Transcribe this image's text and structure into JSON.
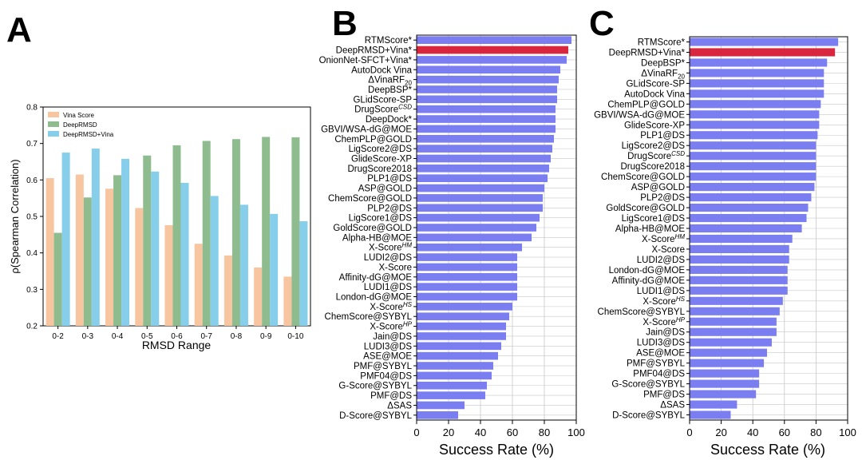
{
  "panels": [
    {
      "letter": "A",
      "chart_data": {
        "type": "bar",
        "xlabel": "RMSD Range",
        "ylabel": "ρ(Spearman Correlation)",
        "ylim": [
          0.2,
          0.8
        ],
        "yticks": [
          "0.2",
          "0.3",
          "0.4",
          "0.5",
          "0.6",
          "0.7",
          "0.8"
        ],
        "categories": [
          "0-2",
          "0-3",
          "0-4",
          "0-5",
          "0-6",
          "0-7",
          "0-8",
          "0-9",
          "0-10"
        ],
        "legend_position": "top-left",
        "grid": false,
        "series": [
          {
            "name": "Vina Score",
            "color": "#f7c59f",
            "values": [
              0.605,
              0.615,
              0.576,
              0.523,
              0.476,
              0.425,
              0.393,
              0.36,
              0.335
            ]
          },
          {
            "name": "DeepRMSD",
            "color": "#8fbc8f",
            "values": [
              0.455,
              0.552,
              0.613,
              0.667,
              0.695,
              0.707,
              0.712,
              0.718,
              0.717
            ]
          },
          {
            "name": "DeepRMSD+Vina",
            "color": "#87ceeb",
            "values": [
              0.675,
              0.686,
              0.658,
              0.623,
              0.592,
              0.556,
              0.532,
              0.507,
              0.487
            ]
          }
        ]
      }
    },
    {
      "letter": "B",
      "chart_data": {
        "type": "bar",
        "orientation": "horizontal",
        "xlabel": "Success Rate (%)",
        "xlim": [
          0,
          100
        ],
        "xticks": [
          "0",
          "20",
          "40",
          "60",
          "80",
          "100"
        ],
        "grid": true,
        "bar_color": "#7b7ef0",
        "highlight_color": "#d7263d",
        "highlight": [
          "DeepRMSD+Vina*"
        ],
        "categories": [
          "RTMScore*",
          "DeepRMSD+Vina*",
          "OnionNet-SFCT+Vina*",
          "AutoDock Vina",
          "ΔVinaRF20",
          "DeepBSP*",
          "GLidScore-SP",
          "DrugScoreCSD",
          "DeepDock*",
          "GBVI/WSA-dG@MOE",
          "ChemPLP@GOLD",
          "LigScore2@DS",
          "GlideScore-XP",
          "DrugScore2018",
          "PLP1@DS",
          "ASP@GOLD",
          "ChemScore@GOLD",
          "PLP2@DS",
          "LigScore1@DS",
          "GoldScore@GOLD",
          "Alpha-HB@MOE",
          "X-ScoreHM",
          "LUDI2@DS",
          "X-Score",
          "Affinity-dG@MOE",
          "LUDI1@DS",
          "London-dG@MOE",
          "X-ScoreHS",
          "ChemScore@SYBYL",
          "X-ScoreHP",
          "Jain@DS",
          "LUDI3@DS",
          "ASE@MOE",
          "PMF@SYBYL",
          "PMF04@DS",
          "G-Score@SYBYL",
          "PMF@DS",
          "ΔSAS",
          "D-Score@SYBYL"
        ],
        "values": [
          97,
          95,
          94,
          90,
          89,
          88,
          88,
          87,
          87,
          87,
          86,
          85,
          84,
          83,
          82,
          80,
          79,
          79,
          77,
          75,
          72,
          66,
          63,
          63,
          63,
          63,
          63,
          60,
          58,
          56,
          56,
          53,
          51,
          48,
          47,
          44,
          43,
          30,
          26
        ]
      }
    },
    {
      "letter": "C",
      "chart_data": {
        "type": "bar",
        "orientation": "horizontal",
        "xlabel": "Success Rate (%)",
        "xlim": [
          0,
          100
        ],
        "xticks": [
          "0",
          "20",
          "40",
          "60",
          "80",
          "100"
        ],
        "grid": true,
        "bar_color": "#7b7ef0",
        "highlight_color": "#d7263d",
        "highlight": [
          "DeepRMSD+Vina*"
        ],
        "categories": [
          "RTMScore*",
          "DeepRMSD+Vina*",
          "DeepBSP*",
          "ΔVinaRF20",
          "GLidScore-SP",
          "AutoDock Vina",
          "ChemPLP@GOLD",
          "GBVI/WSA-dG@MOE",
          "GlideScore-XP",
          "PLP1@DS",
          "LigScore2@DS",
          "DrugScoreCSD",
          "DrugScore2018",
          "ChemScore@GOLD",
          "ASP@GOLD",
          "PLP2@DS",
          "GoldScore@GOLD",
          "LigScore1@DS",
          "Alpha-HB@MOE",
          "X-ScoreHM",
          "X-Score",
          "LUDI2@DS",
          "London-dG@MOE",
          "Affinity-dG@MOE",
          "LUDI1@DS",
          "X-ScoreHS",
          "ChemScore@SYBYL",
          "X-ScoreHP",
          "Jain@DS",
          "LUDI3@DS",
          "ASE@MOE",
          "PMF@SYBYL",
          "PMF04@DS",
          "G-Score@SYBYL",
          "PMF@DS",
          "ΔSAS",
          "D-Score@SYBYL"
        ],
        "values": [
          94,
          92,
          87,
          85,
          85,
          85,
          83,
          82,
          82,
          81,
          80,
          80,
          80,
          80,
          79,
          77,
          75,
          74,
          71,
          65,
          63,
          63,
          62,
          62,
          62,
          59,
          57,
          55,
          55,
          52,
          49,
          47,
          44,
          44,
          42,
          30,
          26
        ]
      }
    }
  ]
}
